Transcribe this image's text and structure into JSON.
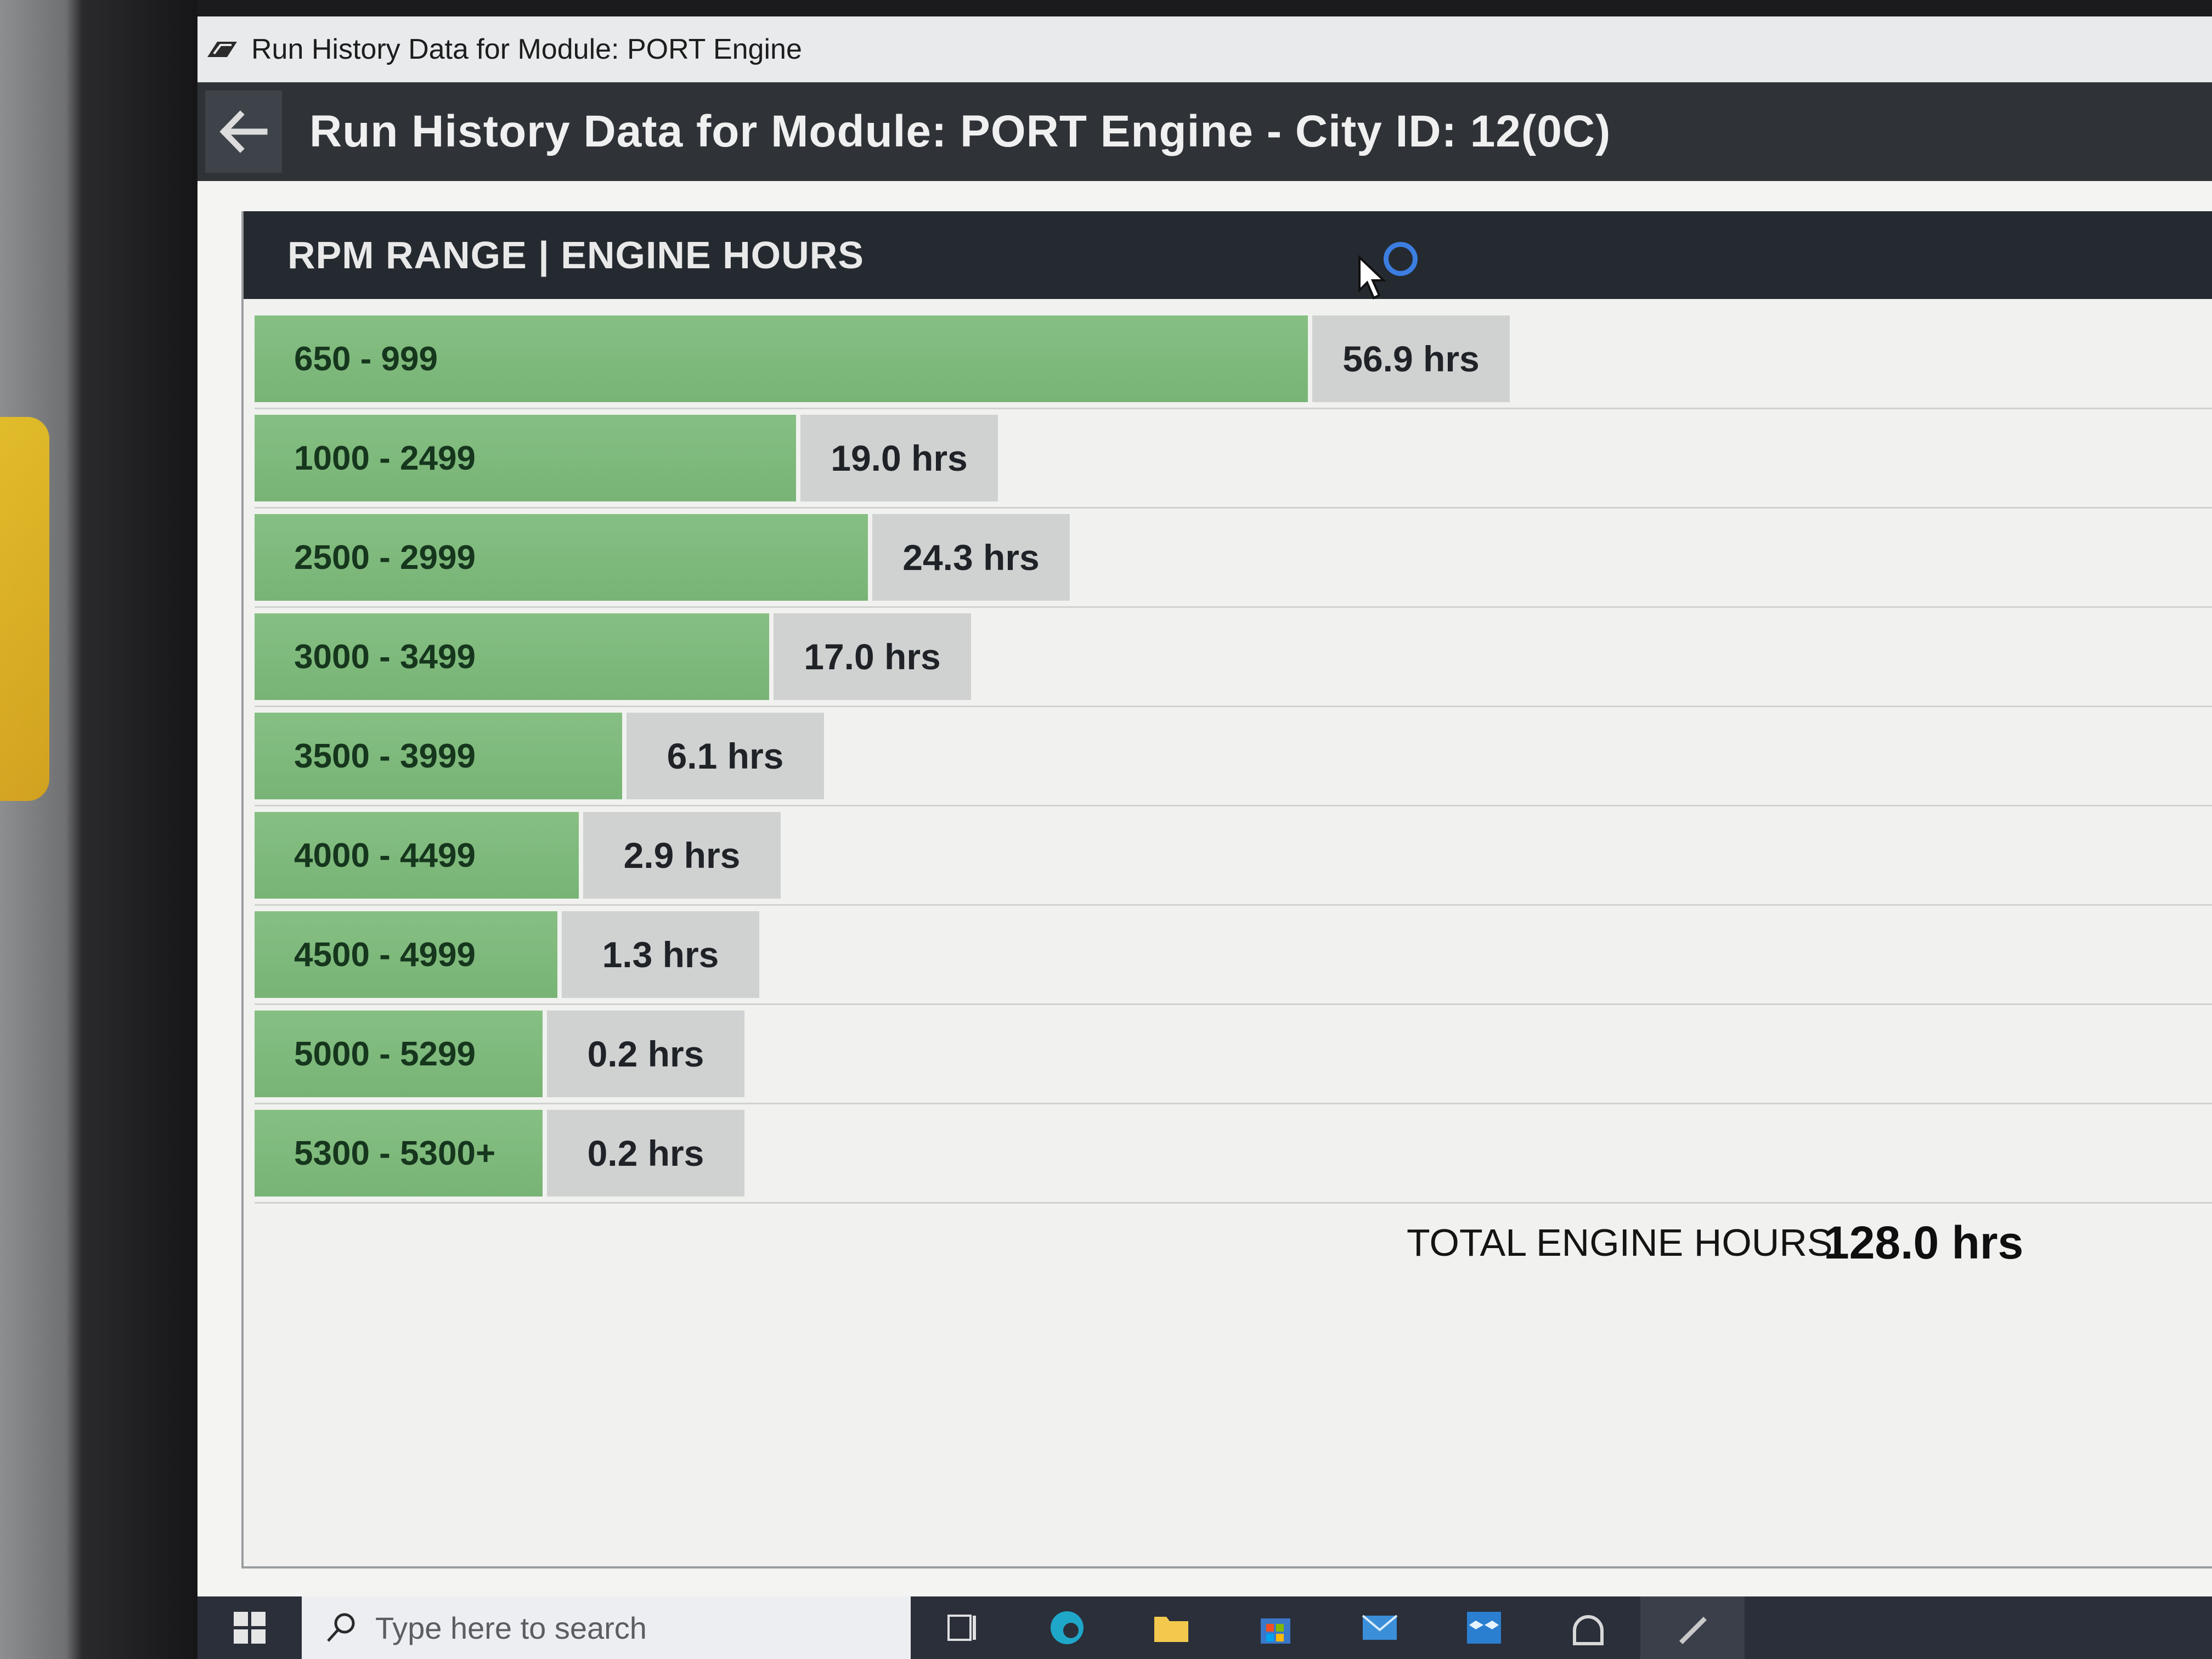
{
  "window": {
    "title": "Run History Data for Module: PORT Engine"
  },
  "header": {
    "title": "Run History Data for Module: PORT Engine - City ID: 12(0C)"
  },
  "table": {
    "header_label": "RPM RANGE | ENGINE HOURS",
    "rows": [
      {
        "range": "650 - 999",
        "hours_text": "56.9 hrs",
        "hours": 56.9
      },
      {
        "range": "1000 - 2499",
        "hours_text": "19.0 hrs",
        "hours": 19.0
      },
      {
        "range": "2500 - 2999",
        "hours_text": "24.3 hrs",
        "hours": 24.3
      },
      {
        "range": "3000 - 3499",
        "hours_text": "17.0 hrs",
        "hours": 17.0
      },
      {
        "range": "3500 - 3999",
        "hours_text": "6.1 hrs",
        "hours": 6.1
      },
      {
        "range": "4000 - 4499",
        "hours_text": "2.9 hrs",
        "hours": 2.9
      },
      {
        "range": "4500 - 4999",
        "hours_text": "1.3 hrs",
        "hours": 1.3
      },
      {
        "range": "5000 - 5299",
        "hours_text": "0.2 hrs",
        "hours": 0.2
      },
      {
        "range": "5300 - 5300+",
        "hours_text": "0.2 hrs",
        "hours": 0.2
      }
    ]
  },
  "total": {
    "label": "TOTAL ENGINE HOURS:",
    "value": "128.0 hrs"
  },
  "taskbar": {
    "search_placeholder": "Type here to search",
    "icons": [
      "task-view-icon",
      "edge-icon",
      "file-explorer-icon",
      "store-icon",
      "mail-icon",
      "dropbox-icon",
      "app-icon",
      "pen-icon"
    ]
  },
  "colors": {
    "bar": "#7fb97c",
    "value_cell": "#cfd2d1",
    "header_bg": "#2f3338",
    "table_header_bg": "#252a30",
    "loading_ring": "#3c7de0"
  }
}
